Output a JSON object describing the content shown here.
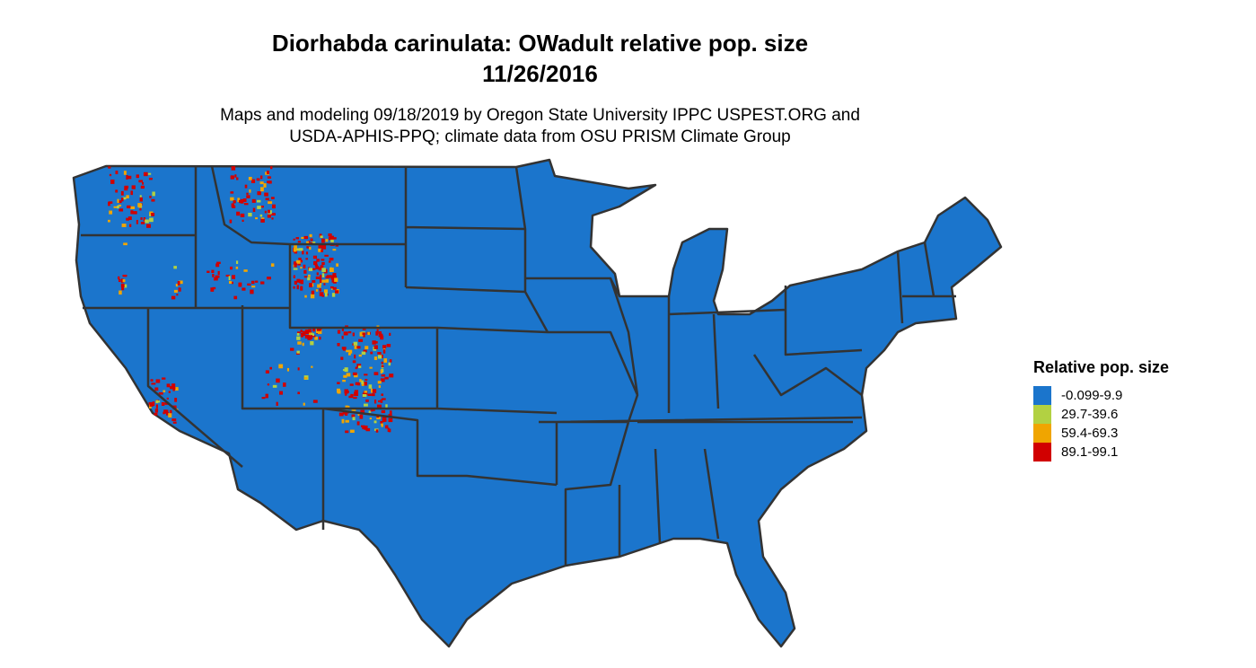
{
  "title_line1": "Diorhabda carinulata: OWadult relative pop. size",
  "title_line2": "11/26/2016",
  "subtitle_line1": "Maps and modeling 09/18/2019 by Oregon State University IPPC USPEST.ORG and",
  "subtitle_line2": "USDA-APHIS-PPQ; climate data from OSU PRISM Climate Group",
  "map": {
    "region": "Contiguous United States",
    "base_color": "#1b75cc",
    "border_color": "#333333"
  },
  "legend": {
    "title": "Relative pop. size",
    "items": [
      {
        "label": "-0.099-9.9",
        "color": "#1b75cc"
      },
      {
        "label": "29.7-39.6",
        "color": "#b2d142"
      },
      {
        "label": "59.4-69.3",
        "color": "#f0a500"
      },
      {
        "label": "89.1-99.1",
        "color": "#d10000"
      }
    ]
  }
}
